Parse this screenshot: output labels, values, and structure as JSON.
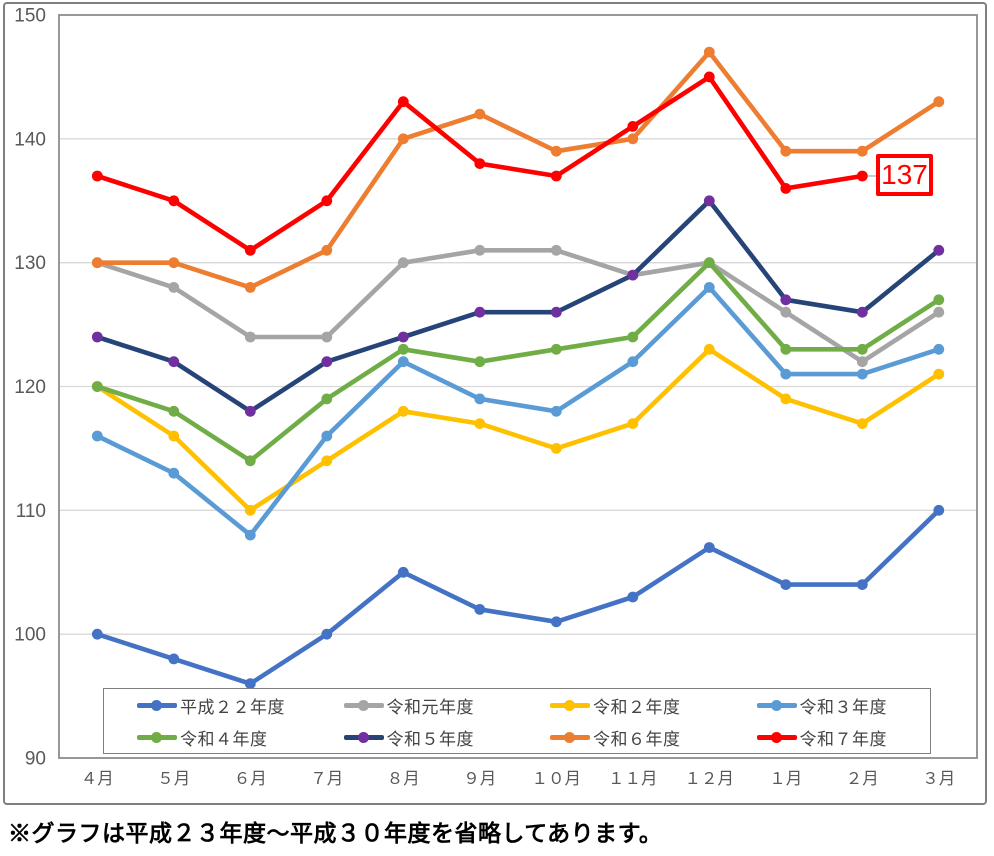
{
  "chart_data": {
    "type": "line",
    "title": "",
    "xlabel": "",
    "ylabel": "",
    "ylim": [
      90,
      150
    ],
    "y_ticks": [
      90,
      100,
      110,
      120,
      130,
      140,
      150
    ],
    "grid": true,
    "legend_position": "bottom-inside",
    "categories": [
      "４月",
      "５月",
      "６月",
      "７月",
      "８月",
      "９月",
      "１０月",
      "１１月",
      "１２月",
      "１月",
      "２月",
      "３月"
    ],
    "series": [
      {
        "id": "h22",
        "name": "平成２２年度",
        "color": "#4472C4",
        "values": [
          100,
          98,
          96,
          100,
          105,
          102,
          101,
          103,
          107,
          104,
          104,
          110
        ]
      },
      {
        "id": "r01",
        "name": "令和元年度",
        "color": "#A5A5A5",
        "values": [
          130,
          128,
          124,
          124,
          130,
          131,
          131,
          129,
          130,
          126,
          122,
          126
        ]
      },
      {
        "id": "r02",
        "name": "令和２年度",
        "color": "#FFC000",
        "values": [
          120,
          116,
          110,
          114,
          118,
          117,
          115,
          117,
          123,
          119,
          117,
          121
        ]
      },
      {
        "id": "r03",
        "name": "令和３年度",
        "color": "#5B9BD5",
        "values": [
          116,
          113,
          108,
          116,
          122,
          119,
          118,
          122,
          128,
          121,
          121,
          123
        ]
      },
      {
        "id": "r04",
        "name": "令和４年度",
        "color": "#70AD47",
        "values": [
          120,
          118,
          114,
          119,
          123,
          122,
          123,
          124,
          130,
          123,
          123,
          127
        ]
      },
      {
        "id": "r05",
        "name": "令和５年度",
        "color": "#264478",
        "marker_color": "#7030A0",
        "values": [
          124,
          122,
          118,
          122,
          124,
          126,
          126,
          129,
          135,
          127,
          126,
          131
        ]
      },
      {
        "id": "r06",
        "name": "令和６年度",
        "color": "#ED7D31",
        "values": [
          130,
          130,
          128,
          131,
          140,
          142,
          139,
          140,
          147,
          139,
          139,
          143
        ]
      },
      {
        "id": "r07",
        "name": "令和７年度",
        "color": "#FF0000",
        "values": [
          137,
          135,
          131,
          135,
          143,
          138,
          137,
          141,
          145,
          136,
          137,
          null
        ]
      }
    ],
    "annotation": {
      "text": "137",
      "series": "令和７年度",
      "category": "２月",
      "box_color": "#FF0000"
    }
  },
  "colors": {
    "grid_line": "#D9D9D9",
    "plot_border": "#8C8C8C",
    "axis_label": "#595959",
    "leader_line": "#BFBFBF"
  },
  "footnote": "※グラフは平成２３年度～平成３０年度を省略してあります。"
}
